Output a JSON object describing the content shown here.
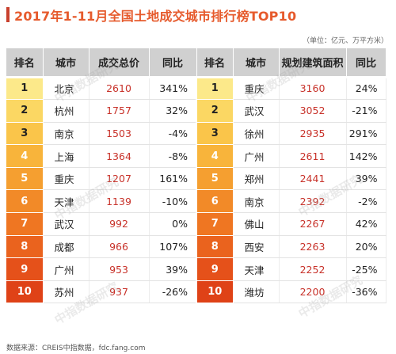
{
  "title": "2017年1-11月全国土地成交城市排行榜TOP10",
  "unit_note": "（单位：亿元、万平方米）",
  "headers": [
    "排名",
    "城市",
    "成交总价",
    "同比",
    "排名",
    "城市",
    "规划建筑面积",
    "同比"
  ],
  "rows": [
    {
      "rank": "1",
      "city_a": "北京",
      "total_price": "2610",
      "yoy_a": "341%",
      "city_b": "重庆",
      "planned_area": "3160",
      "yoy_b": "24%"
    },
    {
      "rank": "2",
      "city_a": "杭州",
      "total_price": "1757",
      "yoy_a": "32%",
      "city_b": "武汉",
      "planned_area": "3052",
      "yoy_b": "-21%"
    },
    {
      "rank": "3",
      "city_a": "南京",
      "total_price": "1503",
      "yoy_a": "-4%",
      "city_b": "徐州",
      "planned_area": "2935",
      "yoy_b": "291%"
    },
    {
      "rank": "4",
      "city_a": "上海",
      "total_price": "1364",
      "yoy_a": "-8%",
      "city_b": "广州",
      "planned_area": "2611",
      "yoy_b": "142%"
    },
    {
      "rank": "5",
      "city_a": "重庆",
      "total_price": "1207",
      "yoy_a": "161%",
      "city_b": "郑州",
      "planned_area": "2441",
      "yoy_b": "39%"
    },
    {
      "rank": "6",
      "city_a": "天津",
      "total_price": "1139",
      "yoy_a": "-10%",
      "city_b": "南京",
      "planned_area": "2392",
      "yoy_b": "-2%"
    },
    {
      "rank": "7",
      "city_a": "武汉",
      "total_price": "992",
      "yoy_a": "0%",
      "city_b": "佛山",
      "planned_area": "2267",
      "yoy_b": "42%"
    },
    {
      "rank": "8",
      "city_a": "成都",
      "total_price": "966",
      "yoy_a": "107%",
      "city_b": "西安",
      "planned_area": "2263",
      "yoy_b": "20%"
    },
    {
      "rank": "9",
      "city_a": "广州",
      "total_price": "953",
      "yoy_a": "39%",
      "city_b": "天津",
      "planned_area": "2252",
      "yoy_b": "-25%"
    },
    {
      "rank": "10",
      "city_a": "苏州",
      "total_price": "937",
      "yoy_a": "-26%",
      "city_b": "潍坊",
      "planned_area": "2200",
      "yoy_b": "-36%"
    }
  ],
  "rank_colors": [
    "#fce98a",
    "#fbd763",
    "#fac54a",
    "#f8b43b",
    "#f59f30",
    "#f28a28",
    "#ef7622",
    "#ea631e",
    "#e5511a",
    "#df4217"
  ],
  "watermark": "中指数据研究",
  "source": "数据来源：CREIS中指数据，fdc.fang.com"
}
